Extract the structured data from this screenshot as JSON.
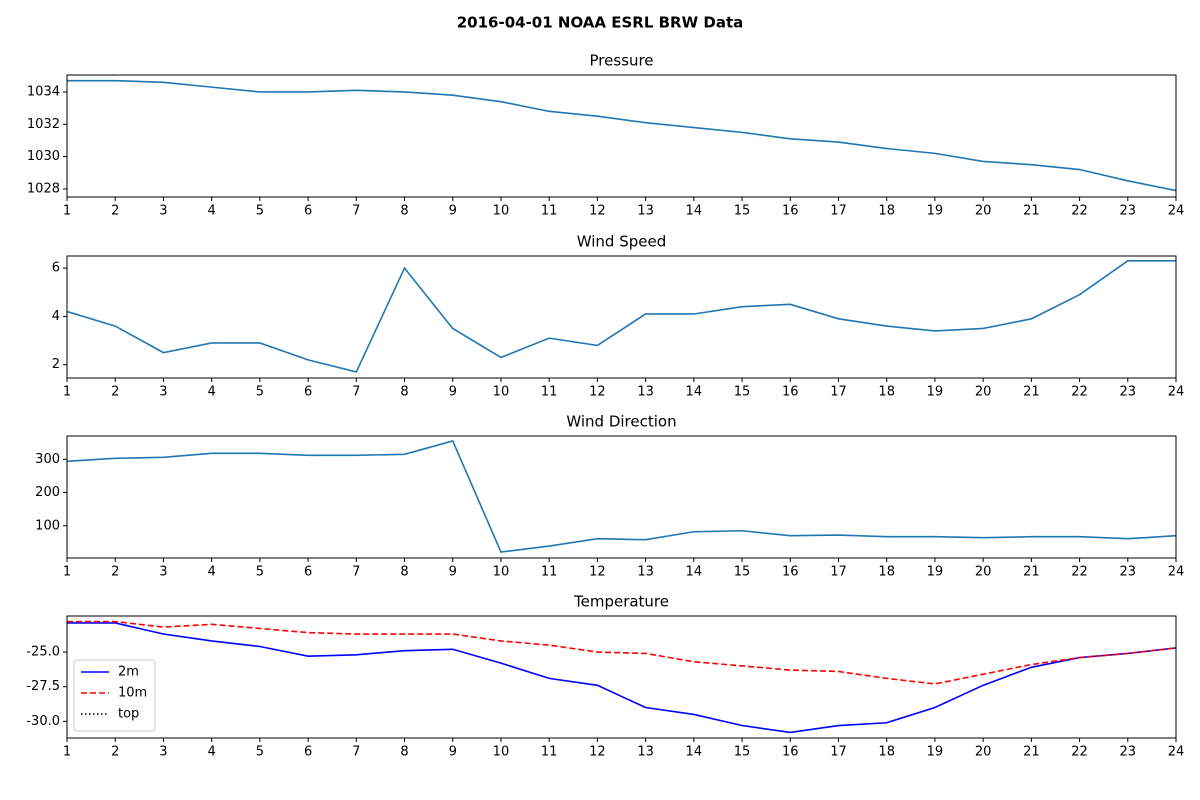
{
  "title": "2016-04-01 NOAA ESRL BRW Data",
  "chart_data": [
    {
      "type": "line",
      "title": "Pressure",
      "x": [
        1,
        2,
        3,
        4,
        5,
        6,
        7,
        8,
        9,
        10,
        11,
        12,
        13,
        14,
        15,
        16,
        17,
        18,
        19,
        20,
        21,
        22,
        23,
        24
      ],
      "series": [
        {
          "name": null,
          "color": "#1f77b4",
          "dash": "solid",
          "values": [
            1034.7,
            1034.7,
            1034.6,
            1034.3,
            1034.0,
            1034.0,
            1034.1,
            1034.0,
            1033.8,
            1033.4,
            1032.8,
            1032.5,
            1032.1,
            1031.8,
            1031.5,
            1031.1,
            1030.9,
            1030.5,
            1030.2,
            1029.7,
            1029.5,
            1029.2,
            1028.5,
            1027.9
          ]
        }
      ],
      "xlim": [
        1,
        24
      ],
      "xticks": [
        1,
        2,
        3,
        4,
        5,
        6,
        7,
        8,
        9,
        10,
        11,
        12,
        13,
        14,
        15,
        16,
        17,
        18,
        19,
        20,
        21,
        22,
        23,
        24
      ],
      "ylim": [
        1027.5,
        1035.05
      ],
      "yticks": [
        1028,
        1030,
        1032,
        1034
      ]
    },
    {
      "type": "line",
      "title": "Wind Speed",
      "x": [
        1,
        2,
        3,
        4,
        5,
        6,
        7,
        8,
        9,
        10,
        11,
        12,
        13,
        14,
        15,
        16,
        17,
        18,
        19,
        20,
        21,
        22,
        23,
        24
      ],
      "series": [
        {
          "name": null,
          "color": "#1f77b4",
          "dash": "solid",
          "values": [
            4.2,
            3.6,
            2.5,
            2.9,
            2.9,
            2.2,
            1.7,
            6.0,
            3.5,
            2.3,
            3.1,
            2.8,
            4.1,
            4.1,
            4.4,
            4.5,
            3.9,
            3.6,
            3.4,
            3.5,
            3.9,
            4.9,
            6.3,
            6.3
          ]
        }
      ],
      "xlim": [
        1,
        24
      ],
      "xticks": [
        1,
        2,
        3,
        4,
        5,
        6,
        7,
        8,
        9,
        10,
        11,
        12,
        13,
        14,
        15,
        16,
        17,
        18,
        19,
        20,
        21,
        22,
        23,
        24
      ],
      "ylim": [
        1.45,
        6.5
      ],
      "yticks": [
        2,
        4,
        6
      ]
    },
    {
      "type": "line",
      "title": "Wind Direction",
      "x": [
        1,
        2,
        3,
        4,
        5,
        6,
        7,
        8,
        9,
        10,
        11,
        12,
        13,
        14,
        15,
        16,
        17,
        18,
        19,
        20,
        21,
        22,
        23,
        24
      ],
      "series": [
        {
          "name": null,
          "color": "#1f77b4",
          "dash": "solid",
          "values": [
            294,
            303,
            306,
            318,
            318,
            312,
            312,
            315,
            355,
            21,
            39,
            61,
            58,
            82,
            85,
            70,
            72,
            67,
            67,
            64,
            67,
            67,
            61,
            70
          ]
        }
      ],
      "xlim": [
        1,
        24
      ],
      "xticks": [
        1,
        2,
        3,
        4,
        5,
        6,
        7,
        8,
        9,
        10,
        11,
        12,
        13,
        14,
        15,
        16,
        17,
        18,
        19,
        20,
        21,
        22,
        23,
        24
      ],
      "ylim": [
        3,
        370
      ],
      "yticks": [
        100,
        200,
        300
      ]
    },
    {
      "type": "line",
      "title": "Temperature",
      "x": [
        1,
        2,
        3,
        4,
        5,
        6,
        7,
        8,
        9,
        10,
        11,
        12,
        13,
        14,
        15,
        16,
        17,
        18,
        19,
        20,
        21,
        22,
        23,
        24
      ],
      "series": [
        {
          "name": "2m",
          "color": "#0000ff",
          "dash": "solid",
          "values": [
            -22.9,
            -22.9,
            -23.7,
            -24.2,
            -24.6,
            -25.3,
            -25.2,
            -24.9,
            -24.8,
            -25.8,
            -26.9,
            -27.4,
            -29.0,
            -29.5,
            -30.3,
            -30.8,
            -30.3,
            -30.1,
            -29.0,
            -27.4,
            -26.1,
            -25.4,
            -25.1,
            -24.7
          ]
        },
        {
          "name": "10m",
          "color": "#ff0000",
          "dash": "dashed",
          "values": [
            -22.8,
            -22.8,
            -23.2,
            -23.0,
            -23.3,
            -23.6,
            -23.7,
            -23.7,
            -23.7,
            -24.2,
            -24.5,
            -25.0,
            -25.1,
            -25.7,
            -26.0,
            -26.3,
            -26.4,
            -26.9,
            -27.3,
            -26.6,
            -25.9,
            -25.4,
            -25.1,
            -24.7
          ]
        },
        {
          "name": "top",
          "color": "#000000",
          "dash": "dotted",
          "values": [
            null,
            null,
            null,
            null,
            null,
            null,
            null,
            null,
            null,
            null,
            null,
            null,
            null,
            null,
            null,
            null,
            null,
            null,
            null,
            null,
            null,
            null,
            null,
            null
          ]
        }
      ],
      "xlim": [
        1,
        24
      ],
      "xticks": [
        1,
        2,
        3,
        4,
        5,
        6,
        7,
        8,
        9,
        10,
        11,
        12,
        13,
        14,
        15,
        16,
        17,
        18,
        19,
        20,
        21,
        22,
        23,
        24
      ],
      "ylim": [
        -31.2,
        -22.4
      ],
      "yticks": [
        {
          "value": -30,
          "label": "-30.0"
        },
        -27.5,
        {
          "value": -25,
          "label": "-25.0"
        }
      ],
      "legend": "lower left"
    }
  ]
}
